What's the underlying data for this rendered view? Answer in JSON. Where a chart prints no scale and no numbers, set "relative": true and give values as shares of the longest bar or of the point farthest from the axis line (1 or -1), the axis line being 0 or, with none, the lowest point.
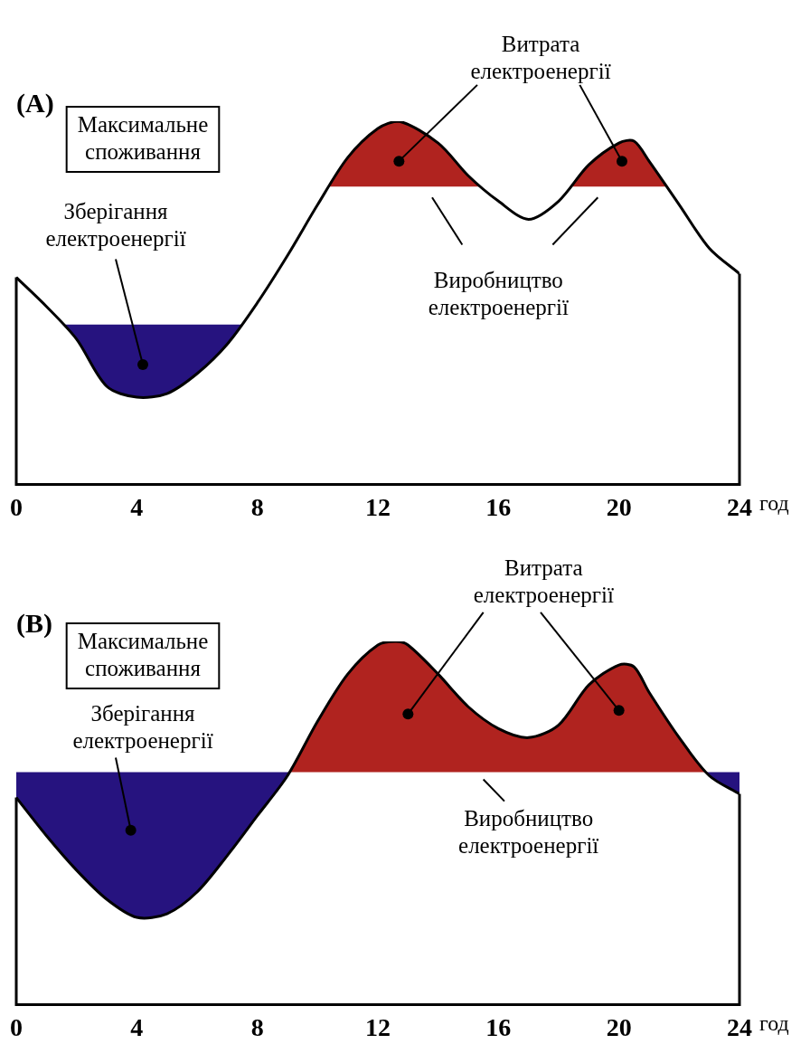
{
  "chart_data": [
    {
      "type": "line",
      "title": "(A)",
      "relative": true,
      "xlabel": "год",
      "xlim": [
        0,
        24
      ],
      "xticks": [
        0,
        4,
        8,
        12,
        16,
        20,
        24
      ],
      "grid": false,
      "legend": false,
      "marker": "none",
      "line_style": "solid",
      "x": [
        0,
        1,
        2,
        3,
        4,
        5,
        6,
        7,
        8,
        9,
        10,
        11,
        12,
        12.7,
        14,
        15,
        16,
        17,
        18,
        19,
        20,
        20.5,
        21,
        22,
        23,
        24
      ],
      "series": [
        {
          "color": "#000000",
          "values": [
            0.57,
            0.49,
            0.4,
            0.27,
            0.24,
            0.25,
            0.305,
            0.386,
            0.5,
            0.63,
            0.77,
            0.9,
            0.98,
            1,
            0.94,
            0.85,
            0.78,
            0.73,
            0.78,
            0.88,
            0.94,
            0.945,
            0.89,
            0.77,
            0.65,
            0.58
          ]
        }
      ],
      "bands": [
        {
          "axis": "y",
          "from": 0.22,
          "to": 0.44,
          "color": "#26137f"
        },
        {
          "axis": "y",
          "from": 0.82,
          "to": 1,
          "color": "#b0231f"
        }
      ],
      "annotations": [
        "Максимальне споживання",
        "Зберігання електроенергії",
        "Витрата електроенергії",
        "Виробництво електроенергії"
      ]
    },
    {
      "type": "line",
      "title": "(B)",
      "relative": true,
      "xlabel": "год",
      "xlim": [
        0,
        24
      ],
      "xticks": [
        0,
        4,
        8,
        12,
        16,
        20,
        24
      ],
      "grid": false,
      "legend": false,
      "marker": "none",
      "line_style": "solid",
      "x": [
        0,
        1,
        2,
        3,
        4,
        5,
        6,
        7,
        8,
        9,
        10,
        11,
        12,
        12.6,
        13,
        14,
        15,
        16,
        17,
        18,
        19,
        20,
        20.5,
        21,
        22,
        23,
        24
      ],
      "series": [
        {
          "color": "#000000",
          "values": [
            0.57,
            0.465,
            0.37,
            0.29,
            0.24,
            0.25,
            0.31,
            0.41,
            0.52,
            0.63,
            0.78,
            0.91,
            0.99,
            1,
            0.99,
            0.91,
            0.82,
            0.76,
            0.735,
            0.77,
            0.88,
            0.935,
            0.93,
            0.86,
            0.735,
            0.63,
            0.58
          ]
        }
      ],
      "bands": [
        {
          "axis": "y",
          "from": 0.22,
          "to": 0.64,
          "color": "#26137f"
        },
        {
          "axis": "y",
          "from": 0.64,
          "to": 1,
          "color": "#b0231f"
        }
      ],
      "annotations": [
        "Максимальне споживання",
        "Зберігання електроенергії",
        "Витрата електроенергії",
        "Виробництво електроенергії"
      ]
    }
  ]
}
